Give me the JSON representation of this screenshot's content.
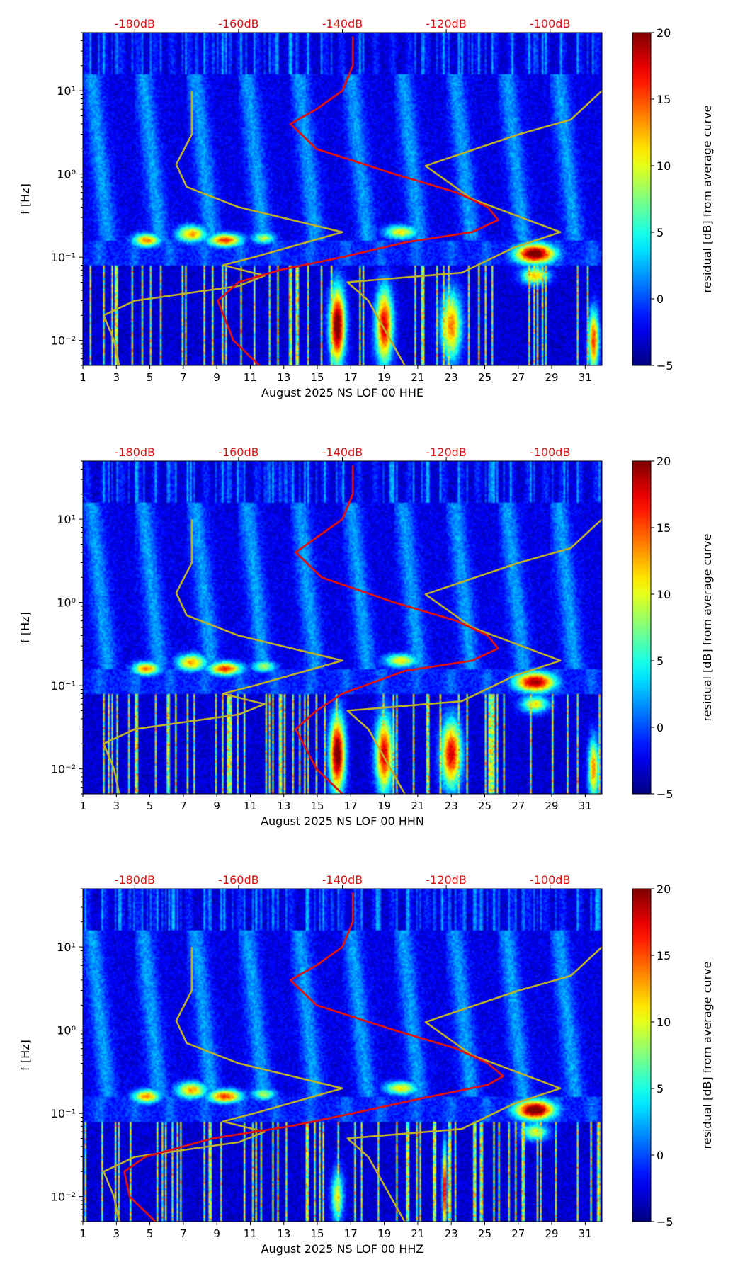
{
  "chart_data": [
    {
      "type": "heatmap",
      "panel": "HHE",
      "xlabel": "August 2025 NS LOF 00 HHE",
      "ylabel": "f [Hz]",
      "x_ticks": [
        "1",
        "3",
        "5",
        "7",
        "9",
        "11",
        "13",
        "15",
        "17",
        "19",
        "21",
        "23",
        "25",
        "27",
        "29",
        "31"
      ],
      "xlim": [
        1,
        32
      ],
      "y_scale": "log",
      "ylim": [
        0.005,
        50
      ],
      "y_ticks": [
        "10⁻²",
        "10⁻¹",
        "10⁰",
        "10¹"
      ],
      "top_axis_ticks": [
        "-180dB",
        "-160dB",
        "-140dB",
        "-120dB",
        "-100dB"
      ],
      "top_axis_range_db": [
        -190,
        -90
      ],
      "colorbar": {
        "label": "residual [dB] from average curve",
        "min": -5,
        "max": 20,
        "ticks": [
          "−5",
          "0",
          "5",
          "10",
          "15",
          "20"
        ]
      },
      "colormap": "jet",
      "red_curve_name": "PSD",
      "red_curve_color": "#dd1111",
      "model_curve_color": "#bdb02a",
      "red_curve": [
        [
          -156,
          0.005
        ],
        [
          -161,
          0.01
        ],
        [
          -164,
          0.03
        ],
        [
          -160,
          0.05
        ],
        [
          -152,
          0.07
        ],
        [
          -140,
          0.1
        ],
        [
          -128,
          0.15
        ],
        [
          -115,
          0.2
        ],
        [
          -110,
          0.28
        ],
        [
          -112,
          0.4
        ],
        [
          -118,
          0.6
        ],
        [
          -130,
          1.0
        ],
        [
          -145,
          2.0
        ],
        [
          -150,
          4.0
        ],
        [
          -145,
          6.0
        ],
        [
          -140,
          10
        ],
        [
          -138,
          20
        ],
        [
          -138,
          45
        ]
      ],
      "model_low": [
        [
          -183,
          0.005
        ],
        [
          -184,
          0.01
        ],
        [
          -186,
          0.02
        ],
        [
          -180,
          0.03
        ],
        [
          -160,
          0.045
        ],
        [
          -155,
          0.06
        ],
        [
          -163,
          0.08
        ],
        [
          -157,
          0.1
        ],
        [
          -140,
          0.2
        ],
        [
          -160,
          0.4
        ],
        [
          -170,
          0.7
        ],
        [
          -172,
          1.3
        ],
        [
          -169,
          3.0
        ],
        [
          -169,
          10
        ]
      ],
      "model_high": [
        [
          -128,
          0.005
        ],
        [
          -135,
          0.03
        ],
        [
          -139,
          0.05
        ],
        [
          -117,
          0.065
        ],
        [
          -107,
          0.13
        ],
        [
          -98,
          0.2
        ],
        [
          -115,
          0.5
        ],
        [
          -124,
          1.25
        ],
        [
          -106,
          3.0
        ],
        [
          -96,
          4.5
        ],
        [
          -90,
          10
        ]
      ],
      "hotspots": [
        {
          "day": 4.8,
          "f": 0.16,
          "dday": 0.8,
          "dlog": 0.08,
          "v": 14
        },
        {
          "day": 7.5,
          "f": 0.19,
          "dday": 0.9,
          "dlog": 0.1,
          "v": 13
        },
        {
          "day": 9.5,
          "f": 0.16,
          "dday": 1.0,
          "dlog": 0.08,
          "v": 16
        },
        {
          "day": 11.8,
          "f": 0.17,
          "dday": 0.7,
          "dlog": 0.07,
          "v": 9
        },
        {
          "day": 20.0,
          "f": 0.2,
          "dday": 1.0,
          "dlog": 0.08,
          "v": 11
        },
        {
          "day": 28.0,
          "f": 0.11,
          "dday": 1.2,
          "dlog": 0.12,
          "v": 22
        },
        {
          "day": 28.0,
          "f": 0.06,
          "dday": 0.8,
          "dlog": 0.1,
          "v": 12
        },
        {
          "day": 16.2,
          "f": 0.015,
          "dday": 0.45,
          "dlog": 0.45,
          "v": 22
        },
        {
          "day": 19.0,
          "f": 0.015,
          "dday": 0.5,
          "dlog": 0.45,
          "v": 18
        },
        {
          "day": 23.0,
          "f": 0.015,
          "dday": 0.6,
          "dlog": 0.4,
          "v": 14
        },
        {
          "day": 31.5,
          "f": 0.01,
          "dday": 0.3,
          "dlog": 0.35,
          "v": 16
        }
      ]
    },
    {
      "type": "heatmap",
      "panel": "HHN",
      "xlabel": "August 2025 NS LOF 00 HHN",
      "ylabel": "f [Hz]",
      "x_ticks": [
        "1",
        "3",
        "5",
        "7",
        "9",
        "11",
        "13",
        "15",
        "17",
        "19",
        "21",
        "23",
        "25",
        "27",
        "29",
        "31"
      ],
      "xlim": [
        1,
        32
      ],
      "y_scale": "log",
      "ylim": [
        0.005,
        50
      ],
      "y_ticks": [
        "10⁻²",
        "10⁻¹",
        "10⁰",
        "10¹"
      ],
      "top_axis_ticks": [
        "-180dB",
        "-160dB",
        "-140dB",
        "-120dB",
        "-100dB"
      ],
      "top_axis_range_db": [
        -190,
        -90
      ],
      "colorbar": {
        "label": "residual [dB] from average curve",
        "min": -5,
        "max": 20,
        "ticks": [
          "−5",
          "0",
          "5",
          "10",
          "15",
          "20"
        ]
      },
      "colormap": "jet",
      "red_curve_name": "PSD",
      "red_curve_color": "#dd1111",
      "model_curve_color": "#bdb02a",
      "red_curve": [
        [
          -140,
          0.005
        ],
        [
          -145,
          0.01
        ],
        [
          -149,
          0.03
        ],
        [
          -145,
          0.05
        ],
        [
          -140,
          0.08
        ],
        [
          -128,
          0.15
        ],
        [
          -115,
          0.2
        ],
        [
          -110,
          0.28
        ],
        [
          -112,
          0.4
        ],
        [
          -118,
          0.6
        ],
        [
          -130,
          1.0
        ],
        [
          -144,
          2.0
        ],
        [
          -149,
          4.0
        ],
        [
          -145,
          6.0
        ],
        [
          -140,
          10
        ],
        [
          -138,
          20
        ],
        [
          -138,
          45
        ]
      ],
      "model_low": [
        [
          -183,
          0.005
        ],
        [
          -184,
          0.01
        ],
        [
          -186,
          0.02
        ],
        [
          -180,
          0.03
        ],
        [
          -160,
          0.045
        ],
        [
          -155,
          0.06
        ],
        [
          -163,
          0.08
        ],
        [
          -157,
          0.1
        ],
        [
          -140,
          0.2
        ],
        [
          -160,
          0.4
        ],
        [
          -170,
          0.7
        ],
        [
          -172,
          1.3
        ],
        [
          -169,
          3.0
        ],
        [
          -169,
          10
        ]
      ],
      "model_high": [
        [
          -128,
          0.005
        ],
        [
          -135,
          0.03
        ],
        [
          -139,
          0.05
        ],
        [
          -117,
          0.065
        ],
        [
          -107,
          0.13
        ],
        [
          -98,
          0.2
        ],
        [
          -115,
          0.5
        ],
        [
          -124,
          1.25
        ],
        [
          -106,
          3.0
        ],
        [
          -96,
          4.5
        ],
        [
          -90,
          10
        ]
      ],
      "hotspots": [
        {
          "day": 4.8,
          "f": 0.16,
          "dday": 0.8,
          "dlog": 0.08,
          "v": 14
        },
        {
          "day": 7.5,
          "f": 0.19,
          "dday": 0.9,
          "dlog": 0.1,
          "v": 13
        },
        {
          "day": 9.5,
          "f": 0.16,
          "dday": 1.0,
          "dlog": 0.08,
          "v": 16
        },
        {
          "day": 11.8,
          "f": 0.17,
          "dday": 0.7,
          "dlog": 0.07,
          "v": 9
        },
        {
          "day": 20.0,
          "f": 0.2,
          "dday": 1.0,
          "dlog": 0.08,
          "v": 11
        },
        {
          "day": 28.0,
          "f": 0.11,
          "dday": 1.2,
          "dlog": 0.12,
          "v": 20
        },
        {
          "day": 28.0,
          "f": 0.06,
          "dday": 0.8,
          "dlog": 0.1,
          "v": 11
        },
        {
          "day": 16.2,
          "f": 0.015,
          "dday": 0.45,
          "dlog": 0.45,
          "v": 22
        },
        {
          "day": 19.0,
          "f": 0.015,
          "dday": 0.5,
          "dlog": 0.45,
          "v": 18
        },
        {
          "day": 23.0,
          "f": 0.015,
          "dday": 0.6,
          "dlog": 0.4,
          "v": 18
        },
        {
          "day": 31.5,
          "f": 0.01,
          "dday": 0.3,
          "dlog": 0.35,
          "v": 14
        }
      ]
    },
    {
      "type": "heatmap",
      "panel": "HHZ",
      "xlabel": "August 2025 NS LOF 00 HHZ",
      "ylabel": "f [Hz]",
      "x_ticks": [
        "1",
        "3",
        "5",
        "7",
        "9",
        "11",
        "13",
        "15",
        "17",
        "19",
        "21",
        "23",
        "25",
        "27",
        "29",
        "31"
      ],
      "xlim": [
        1,
        32
      ],
      "y_scale": "log",
      "ylim": [
        0.005,
        50
      ],
      "y_ticks": [
        "10⁻²",
        "10⁻¹",
        "10⁰",
        "10¹"
      ],
      "top_axis_ticks": [
        "-180dB",
        "-160dB",
        "-140dB",
        "-120dB",
        "-100dB"
      ],
      "top_axis_range_db": [
        -190,
        -90
      ],
      "colorbar": {
        "label": "residual [dB] from average curve",
        "min": -5,
        "max": 20,
        "ticks": [
          "−5",
          "0",
          "5",
          "10",
          "15",
          "20"
        ]
      },
      "colormap": "jet",
      "red_curve_name": "PSD",
      "red_curve_color": "#dd1111",
      "model_curve_color": "#bdb02a",
      "red_curve": [
        [
          -176,
          0.005
        ],
        [
          -181,
          0.01
        ],
        [
          -182,
          0.02
        ],
        [
          -178,
          0.03
        ],
        [
          -165,
          0.05
        ],
        [
          -150,
          0.07
        ],
        [
          -138,
          0.1
        ],
        [
          -125,
          0.15
        ],
        [
          -112,
          0.22
        ],
        [
          -109,
          0.28
        ],
        [
          -112,
          0.4
        ],
        [
          -118,
          0.6
        ],
        [
          -130,
          1.0
        ],
        [
          -145,
          2.0
        ],
        [
          -150,
          4.0
        ],
        [
          -145,
          6.0
        ],
        [
          -140,
          10
        ],
        [
          -138,
          20
        ],
        [
          -138,
          45
        ]
      ],
      "model_low": [
        [
          -183,
          0.005
        ],
        [
          -184,
          0.01
        ],
        [
          -186,
          0.02
        ],
        [
          -180,
          0.03
        ],
        [
          -160,
          0.045
        ],
        [
          -155,
          0.06
        ],
        [
          -163,
          0.08
        ],
        [
          -157,
          0.1
        ],
        [
          -140,
          0.2
        ],
        [
          -160,
          0.4
        ],
        [
          -170,
          0.7
        ],
        [
          -172,
          1.3
        ],
        [
          -169,
          3.0
        ],
        [
          -169,
          10
        ]
      ],
      "model_high": [
        [
          -128,
          0.005
        ],
        [
          -135,
          0.03
        ],
        [
          -139,
          0.05
        ],
        [
          -117,
          0.065
        ],
        [
          -107,
          0.13
        ],
        [
          -98,
          0.2
        ],
        [
          -115,
          0.5
        ],
        [
          -124,
          1.25
        ],
        [
          -106,
          3.0
        ],
        [
          -96,
          4.5
        ],
        [
          -90,
          10
        ]
      ],
      "hotspots": [
        {
          "day": 4.8,
          "f": 0.16,
          "dday": 0.8,
          "dlog": 0.08,
          "v": 14
        },
        {
          "day": 7.5,
          "f": 0.19,
          "dday": 0.9,
          "dlog": 0.1,
          "v": 13
        },
        {
          "day": 9.5,
          "f": 0.16,
          "dday": 1.0,
          "dlog": 0.08,
          "v": 16
        },
        {
          "day": 11.8,
          "f": 0.17,
          "dday": 0.7,
          "dlog": 0.07,
          "v": 9
        },
        {
          "day": 20.0,
          "f": 0.2,
          "dday": 1.0,
          "dlog": 0.08,
          "v": 11
        },
        {
          "day": 28.0,
          "f": 0.11,
          "dday": 1.2,
          "dlog": 0.12,
          "v": 22
        },
        {
          "day": 28.0,
          "f": 0.06,
          "dday": 0.8,
          "dlog": 0.1,
          "v": 10
        },
        {
          "day": 16.2,
          "f": 0.01,
          "dday": 0.35,
          "dlog": 0.3,
          "v": 10
        },
        {
          "day": 22.6,
          "f": 0.012,
          "dday": 0.12,
          "dlog": 0.5,
          "v": 20
        }
      ]
    }
  ]
}
